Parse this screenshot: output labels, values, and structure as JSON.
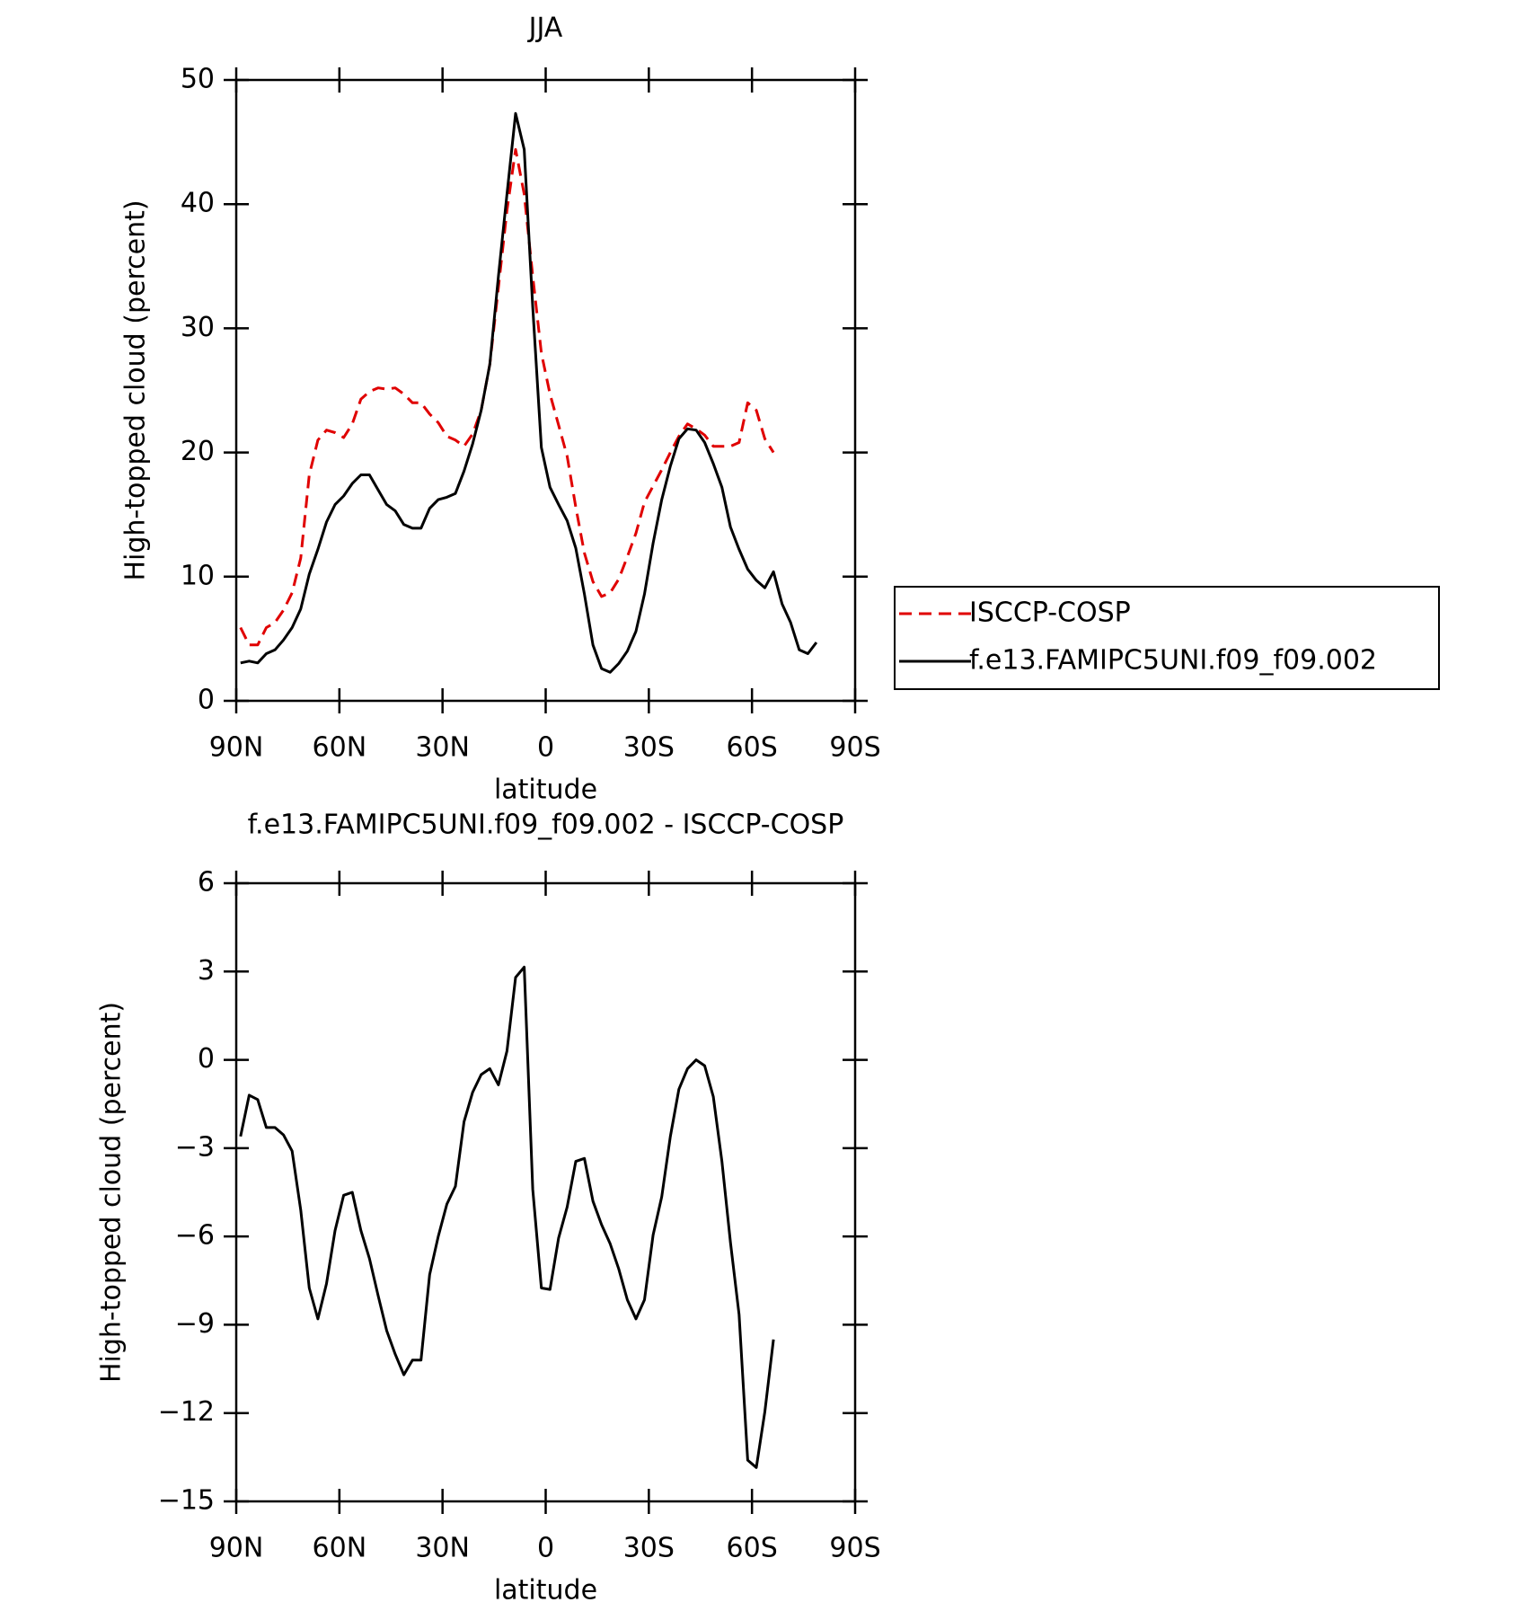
{
  "chart_data": [
    {
      "type": "line",
      "title": "JJA",
      "xlabel": "latitude",
      "ylabel": "High-topped cloud (percent)",
      "xlim": [
        90,
        -90
      ],
      "xticks": [
        {
          "value": 90,
          "label": "90N"
        },
        {
          "value": 60,
          "label": "60N"
        },
        {
          "value": 30,
          "label": "30N"
        },
        0,
        {
          "value": -30,
          "label": "30S"
        },
        {
          "value": -60,
          "label": "60S"
        },
        {
          "value": -90,
          "label": "90S"
        }
      ],
      "ylim": [
        0,
        50
      ],
      "yticks": [
        0,
        10,
        20,
        30,
        40,
        50
      ],
      "legend": "right",
      "series": [
        {
          "name": "ISCCP-COSP",
          "color": "#e00000",
          "style": "dashed",
          "x": [
            88.75,
            86.25,
            83.75,
            81.25,
            78.75,
            76.25,
            73.75,
            71.25,
            68.75,
            66.25,
            63.75,
            61.25,
            58.75,
            56.25,
            53.75,
            51.25,
            48.75,
            46.25,
            43.75,
            41.25,
            38.75,
            36.25,
            33.75,
            31.25,
            28.75,
            26.25,
            23.75,
            21.25,
            18.75,
            16.25,
            13.75,
            11.25,
            8.75,
            6.25,
            3.75,
            1.25,
            -1.25,
            -3.75,
            -6.25,
            -8.75,
            -11.25,
            -13.75,
            -16.25,
            -18.75,
            -21.25,
            -23.75,
            -26.25,
            -28.75,
            -31.25,
            -33.75,
            -36.25,
            -38.75,
            -41.25,
            -43.75,
            -46.25,
            -48.75,
            -51.25,
            -53.75,
            -56.25,
            -58.75,
            -61.25,
            -63.75,
            -66.25
          ],
          "values": [
            5.9,
            4.5,
            4.5,
            5.9,
            6.3,
            7.3,
            8.7,
            11.5,
            18.2,
            21.0,
            21.8,
            21.6,
            21.2,
            22.3,
            24.3,
            24.9,
            25.2,
            25.1,
            25.2,
            24.7,
            24.0,
            24.0,
            23.1,
            22.4,
            21.3,
            21.0,
            20.5,
            21.5,
            23.4,
            27.1,
            33.3,
            39.5,
            44.4,
            40.8,
            34.2,
            28.0,
            24.7,
            22.2,
            19.7,
            15.6,
            11.9,
            9.6,
            8.4,
            8.7,
            9.8,
            11.6,
            13.5,
            16.0,
            17.3,
            18.6,
            20.0,
            21.3,
            22.3,
            21.9,
            21.4,
            20.5,
            20.5,
            20.5,
            20.8,
            24.0,
            23.4,
            21.1,
            20.0
          ]
        },
        {
          "name": "f.e13.FAMIPC5UNI.f09_f09.002",
          "color": "#000000",
          "style": "solid",
          "x": [
            88.75,
            86.25,
            83.75,
            81.25,
            78.75,
            76.25,
            73.75,
            71.25,
            68.75,
            66.25,
            63.75,
            61.25,
            58.75,
            56.25,
            53.75,
            51.25,
            48.75,
            46.25,
            43.75,
            41.25,
            38.75,
            36.25,
            33.75,
            31.25,
            28.75,
            26.25,
            23.75,
            21.25,
            18.75,
            16.25,
            13.75,
            11.25,
            8.75,
            6.25,
            3.75,
            1.25,
            -1.25,
            -3.75,
            -6.25,
            -8.75,
            -11.25,
            -13.75,
            -16.25,
            -18.75,
            -21.25,
            -23.75,
            -26.25,
            -28.75,
            -31.25,
            -33.75,
            -36.25,
            -38.75,
            -41.25,
            -43.75,
            -46.25,
            -48.75,
            -51.25,
            -53.75,
            -56.25,
            -58.75,
            -61.25,
            -63.75,
            -66.25,
            -68.75,
            -71.25,
            -73.75,
            -76.25,
            -78.75
          ],
          "values": [
            3.05,
            3.2,
            3.05,
            3.8,
            4.1,
            4.9,
            5.9,
            7.4,
            10.2,
            12.2,
            14.4,
            15.8,
            16.5,
            17.5,
            18.2,
            18.2,
            17.0,
            15.8,
            15.3,
            14.2,
            13.9,
            13.9,
            15.5,
            16.2,
            16.4,
            16.7,
            18.5,
            20.7,
            23.4,
            27.1,
            34.2,
            40.8,
            47.3,
            44.4,
            31.7,
            20.4,
            17.2,
            15.8,
            14.5,
            12.3,
            8.6,
            4.5,
            2.6,
            2.3,
            3.0,
            4.0,
            5.6,
            8.6,
            12.7,
            16.2,
            18.9,
            21.1,
            21.9,
            21.8,
            20.8,
            19.1,
            17.2,
            14.0,
            12.2,
            10.6,
            9.7,
            9.1,
            10.4,
            7.8,
            6.3,
            4.1,
            3.8,
            4.7
          ]
        }
      ]
    },
    {
      "type": "line",
      "title": "f.e13.FAMIPC5UNI.f09_f09.002 - ISCCP-COSP",
      "xlabel": "latitude",
      "ylabel": "High-topped cloud (percent)",
      "xlim": [
        90,
        -90
      ],
      "xticks": [
        {
          "value": 90,
          "label": "90N"
        },
        {
          "value": 60,
          "label": "60N"
        },
        {
          "value": 30,
          "label": "30N"
        },
        0,
        {
          "value": -30,
          "label": "30S"
        },
        {
          "value": -60,
          "label": "60S"
        },
        {
          "value": -90,
          "label": "90S"
        }
      ],
      "ylim": [
        -15,
        6
      ],
      "yticks": [
        {
          "value": -15,
          "label": "−15"
        },
        {
          "value": -12,
          "label": "−12"
        },
        {
          "value": -9,
          "label": "−9"
        },
        {
          "value": -6,
          "label": "−6"
        },
        {
          "value": -3,
          "label": "−3"
        },
        0,
        3,
        6
      ],
      "series": [
        {
          "color": "#000000",
          "style": "solid",
          "x": [
            88.75,
            86.25,
            83.75,
            81.25,
            78.75,
            76.25,
            73.75,
            71.25,
            68.75,
            66.25,
            63.75,
            61.25,
            58.75,
            56.25,
            53.75,
            51.25,
            48.75,
            46.25,
            43.75,
            41.25,
            38.75,
            36.25,
            33.75,
            31.25,
            28.75,
            26.25,
            23.75,
            21.25,
            18.75,
            16.25,
            13.75,
            11.25,
            8.75,
            6.25,
            3.75,
            1.25,
            -1.25,
            -3.75,
            -6.25,
            -8.75,
            -11.25,
            -13.75,
            -16.25,
            -18.75,
            -21.25,
            -23.75,
            -26.25,
            -28.75,
            -31.25,
            -33.75,
            -36.25,
            -38.75,
            -41.25,
            -43.75,
            -46.25,
            -48.75,
            -51.25,
            -53.75,
            -56.25,
            -58.75,
            -61.25,
            -63.75,
            -66.25
          ],
          "values": [
            -2.6,
            -1.2,
            -1.35,
            -2.3,
            -2.3,
            -2.55,
            -3.1,
            -5.1,
            -7.75,
            -8.8,
            -7.6,
            -5.8,
            -4.6,
            -4.5,
            -5.8,
            -6.75,
            -8.0,
            -9.2,
            -10.0,
            -10.7,
            -10.2,
            -10.2,
            -7.3,
            -6.0,
            -4.9,
            -4.3,
            -2.1,
            -1.1,
            -0.5,
            -0.3,
            -0.85,
            0.3,
            2.8,
            3.15,
            -4.4,
            -7.75,
            -7.8,
            -6.05,
            -5.0,
            -3.45,
            -3.35,
            -4.8,
            -5.6,
            -6.25,
            -7.1,
            -8.15,
            -8.8,
            -8.15,
            -5.95,
            -4.65,
            -2.6,
            -1.0,
            -0.3,
            0,
            -0.2,
            -1.25,
            -3.45,
            -6.2,
            -8.65,
            -13.6,
            -13.85,
            -11.95,
            -9.5
          ]
        }
      ]
    }
  ]
}
